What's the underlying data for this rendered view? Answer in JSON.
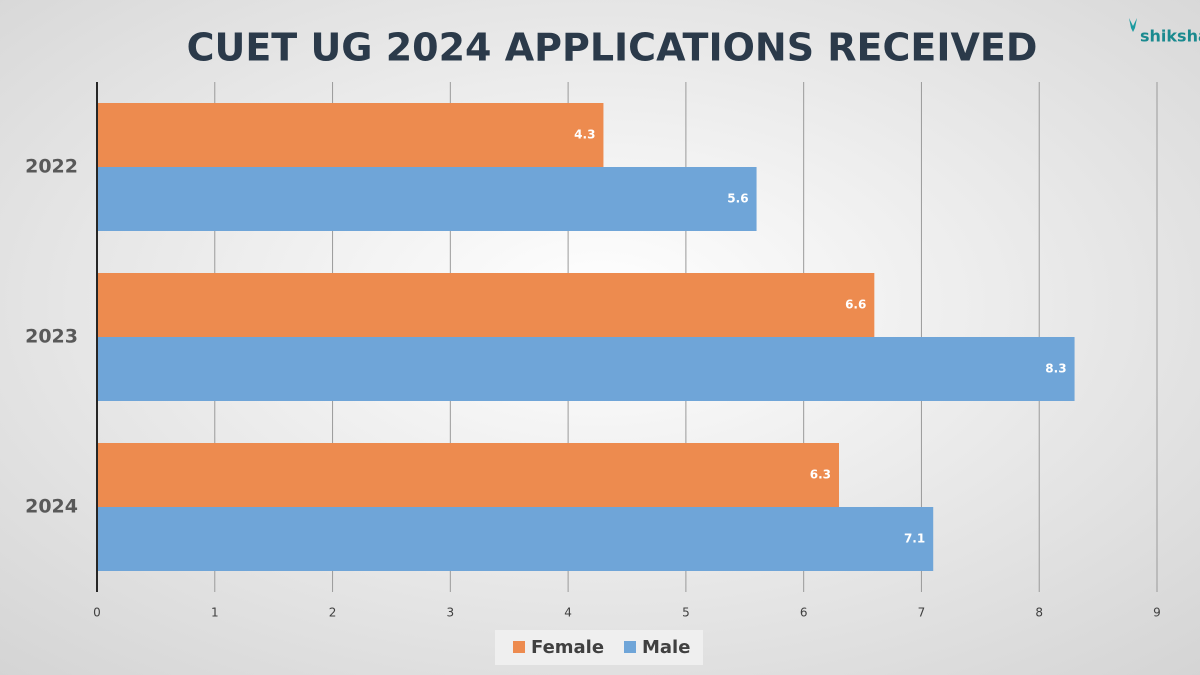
{
  "chart_data": {
    "type": "bar",
    "orientation": "horizontal",
    "title": "CUET UG 2024 APPLICATIONS RECEIVED",
    "brand": "shiksha",
    "categories": [
      "2022",
      "2023",
      "2024"
    ],
    "series": [
      {
        "name": "Female",
        "color": "#ed8b4f",
        "values": [
          4.3,
          6.6,
          6.3
        ]
      },
      {
        "name": "Male",
        "color": "#6fa5d8",
        "values": [
          5.6,
          8.3,
          7.1
        ]
      }
    ],
    "xlim": [
      0,
      9
    ],
    "xticks": [
      0,
      1,
      2,
      3,
      4,
      5,
      6,
      7,
      8,
      9
    ],
    "grid": true,
    "legend": "bottom"
  }
}
